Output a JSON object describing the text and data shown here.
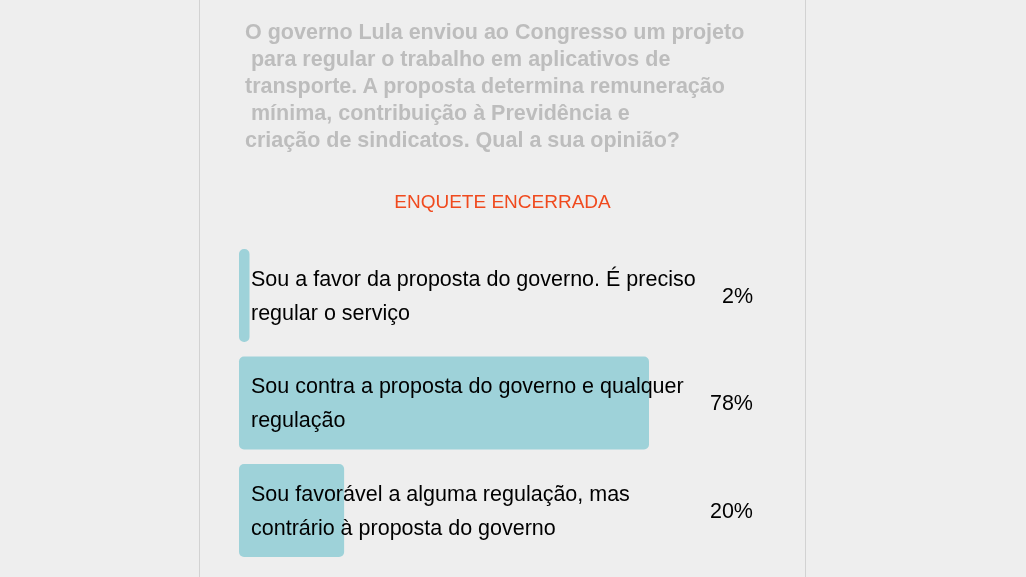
{
  "chart_data": {
    "type": "bar",
    "orientation": "horizontal",
    "title": "O governo Lula enviou ao Congresso um projeto para regular o trabalho em aplicativos de transporte. A proposta determina remuneração mínima, contribuição à Previdência e criação de sindicatos. Qual a sua opinião?",
    "subtitle": "ENQUETE ENCERRADA",
    "categories": [
      "Sou a favor da proposta do governo. É preciso regular o serviço",
      "Sou contra a proposta do governo e qualquer regulação",
      "Sou favorável a alguma regulação, mas contrário à proposta do governo"
    ],
    "values": [
      2,
      78,
      20
    ],
    "value_labels": [
      "2%",
      "78%",
      "20%"
    ],
    "color": "#9ed2d9",
    "tick_labels": "y"
  }
}
